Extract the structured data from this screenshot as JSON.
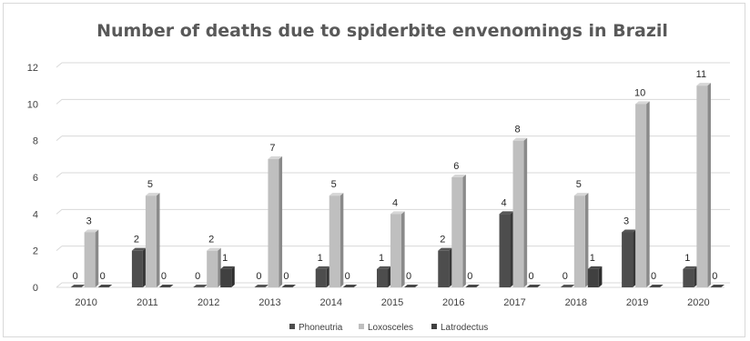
{
  "chart_data": {
    "type": "bar",
    "title": "Number of deaths due to spiderbite envenomings in Brazil",
    "xlabel": "",
    "ylabel": "",
    "ylim": [
      0,
      12
    ],
    "yticks": [
      "0",
      "2",
      "4",
      "6",
      "8",
      "10",
      "12"
    ],
    "categories": [
      "2010",
      "2011",
      "2012",
      "2013",
      "2014",
      "2015",
      "2016",
      "2017",
      "2018",
      "2019",
      "2020"
    ],
    "series": [
      {
        "name": "Phoneutria",
        "color": "#4d4d4d",
        "values": [
          0,
          2,
          0,
          0,
          1,
          1,
          2,
          4,
          0,
          3,
          1
        ]
      },
      {
        "name": "Loxosceles",
        "color": "#bfbfbf",
        "values": [
          3,
          5,
          2,
          7,
          5,
          4,
          6,
          8,
          5,
          10,
          11
        ]
      },
      {
        "name": "Latrodectus",
        "color": "#404040",
        "values": [
          0,
          0,
          1,
          0,
          0,
          0,
          0,
          0,
          1,
          0,
          0
        ]
      }
    ],
    "grid": true,
    "legend": "bottom",
    "style": "3d-clustered-column"
  }
}
